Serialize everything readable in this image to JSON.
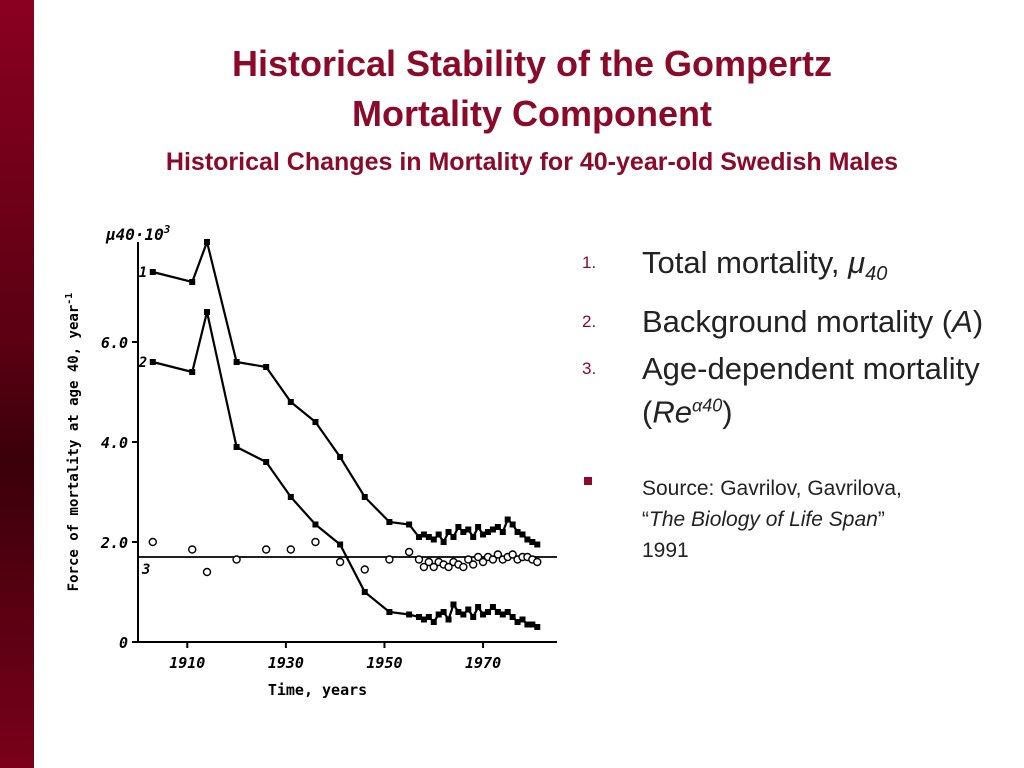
{
  "slide": {
    "title_line1": "Historical Stability of the Gompertz",
    "title_line2": "Mortality Component",
    "subtitle": "Historical Changes in Mortality for 40-year-old Swedish Males",
    "accent_color": "#8b0a2a",
    "sidebar_color": "#5a0012"
  },
  "list": {
    "items": [
      {
        "number": "1.",
        "text": "Total mortality, ",
        "sym": "μ",
        "sub": "40"
      },
      {
        "number": "2.",
        "text": "Background mortality (",
        "sym": "A",
        "tail": ")"
      },
      {
        "number": "3.",
        "text": "Age-dependent mortality (",
        "sym": "Re",
        "sup": "α40",
        "tail": ")"
      }
    ],
    "source_line1": "Source: Gavrilov, Gavrilova,",
    "source_quote_open": "“",
    "source_book": "The Biology of Life Span",
    "source_quote_close": "”",
    "source_year": "1991"
  },
  "chart_data": {
    "type": "line",
    "ylabel": "Force of mortality at age 40, year",
    "ylabel_sup": "-1",
    "xlabel": "Time, years",
    "yunit_label": "μ40·10",
    "yunit_sup": "3",
    "xlim": [
      1900,
      1985
    ],
    "ylim": [
      0,
      8
    ],
    "xticks": [
      1910,
      1930,
      1950,
      1970
    ],
    "yticks": [
      0,
      2.0,
      4.0,
      6.0
    ],
    "ytick_labels": [
      "0",
      "2.0",
      "4.0",
      "6.0"
    ],
    "series": [
      {
        "name": "1",
        "marker": "filled-line",
        "x": [
          1903,
          1911,
          1914,
          1920,
          1926,
          1931,
          1936,
          1941,
          1946,
          1951,
          1955,
          1957,
          1958,
          1959,
          1960,
          1961,
          1962,
          1963,
          1964,
          1965,
          1966,
          1967,
          1968,
          1969,
          1970,
          1971,
          1972,
          1973,
          1974,
          1975,
          1976,
          1977,
          1978,
          1979,
          1980,
          1981
        ],
        "y": [
          7.4,
          7.2,
          8.0,
          5.6,
          5.5,
          4.8,
          4.4,
          3.7,
          2.9,
          2.4,
          2.35,
          2.1,
          2.15,
          2.1,
          2.05,
          2.15,
          2.0,
          2.2,
          2.1,
          2.3,
          2.2,
          2.25,
          2.1,
          2.3,
          2.15,
          2.2,
          2.25,
          2.3,
          2.2,
          2.45,
          2.35,
          2.2,
          2.15,
          2.05,
          2.0,
          1.95
        ]
      },
      {
        "name": "2",
        "marker": "filled-line",
        "x": [
          1903,
          1911,
          1914,
          1920,
          1926,
          1931,
          1936,
          1941,
          1946,
          1951,
          1955,
          1957,
          1958,
          1959,
          1960,
          1961,
          1962,
          1963,
          1964,
          1965,
          1966,
          1967,
          1968,
          1969,
          1970,
          1971,
          1972,
          1973,
          1974,
          1975,
          1976,
          1977,
          1978,
          1979,
          1980,
          1981
        ],
        "y": [
          5.6,
          5.4,
          6.6,
          3.9,
          3.6,
          2.9,
          2.35,
          1.95,
          1.0,
          0.6,
          0.55,
          0.5,
          0.45,
          0.5,
          0.4,
          0.55,
          0.6,
          0.45,
          0.75,
          0.6,
          0.55,
          0.65,
          0.5,
          0.7,
          0.55,
          0.6,
          0.7,
          0.6,
          0.55,
          0.6,
          0.5,
          0.4,
          0.45,
          0.35,
          0.35,
          0.3
        ]
      },
      {
        "name": "3",
        "marker": "open",
        "x": [
          1903,
          1911,
          1914,
          1920,
          1926,
          1931,
          1936,
          1941,
          1946,
          1951,
          1955,
          1957,
          1958,
          1959,
          1960,
          1961,
          1962,
          1963,
          1964,
          1965,
          1966,
          1967,
          1968,
          1969,
          1970,
          1971,
          1972,
          1973,
          1974,
          1975,
          1976,
          1977,
          1978,
          1979,
          1980,
          1981
        ],
        "y": [
          2.0,
          1.85,
          1.4,
          1.65,
          1.85,
          1.85,
          2.0,
          1.6,
          1.45,
          1.65,
          1.8,
          1.65,
          1.5,
          1.6,
          1.5,
          1.6,
          1.55,
          1.5,
          1.6,
          1.55,
          1.5,
          1.65,
          1.55,
          1.7,
          1.6,
          1.7,
          1.65,
          1.75,
          1.65,
          1.7,
          1.75,
          1.65,
          1.7,
          1.7,
          1.65,
          1.6
        ]
      }
    ],
    "reference_line": {
      "label": "3",
      "y": 1.7
    }
  }
}
